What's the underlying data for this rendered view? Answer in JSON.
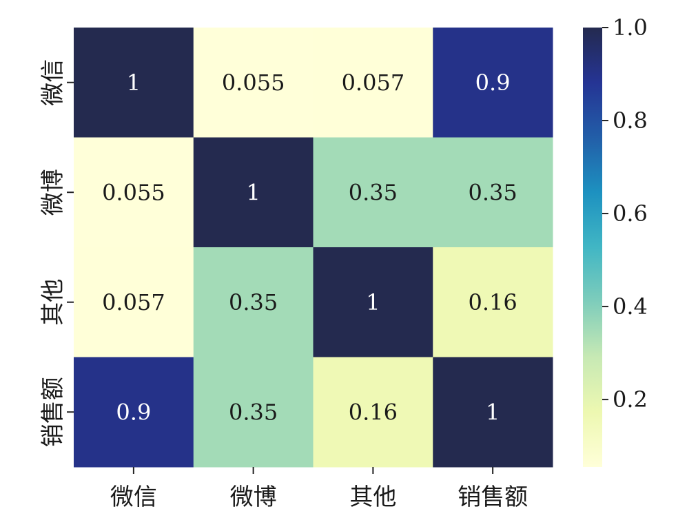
{
  "chart_data": {
    "type": "heatmap",
    "title": "",
    "xlabel": "",
    "ylabel": "",
    "x_categories": [
      "微信",
      "微博",
      "其他",
      "销售额"
    ],
    "y_categories": [
      "微信",
      "微博",
      "其他",
      "销售额"
    ],
    "values": [
      [
        1,
        0.055,
        0.057,
        0.9
      ],
      [
        0.055,
        1,
        0.35,
        0.35
      ],
      [
        0.057,
        0.35,
        1,
        0.16
      ],
      [
        0.9,
        0.35,
        0.16,
        1
      ]
    ],
    "cell_labels": [
      [
        "1",
        "0.055",
        "0.057",
        "0.9"
      ],
      [
        "0.055",
        "1",
        "0.35",
        "0.35"
      ],
      [
        "0.057",
        "0.35",
        "1",
        "0.16"
      ],
      [
        "0.9",
        "0.35",
        "0.16",
        "1"
      ]
    ],
    "colorbar": {
      "vmin": 0.055,
      "vmax": 1.0,
      "ticks": [
        1.0,
        0.8,
        0.6,
        0.4,
        0.2
      ],
      "tick_labels": [
        "1.0",
        "0.8",
        "0.6",
        "0.4",
        "0.2"
      ],
      "colormap": "YlGnBu",
      "stops": [
        "#ffffd9",
        "#edf8b1",
        "#c7e9b4",
        "#7fcdbb",
        "#41b6c4",
        "#1d91c0",
        "#225ea8",
        "#253494",
        "#242a4f"
      ]
    },
    "grid": false,
    "legend": "colorbar-right"
  }
}
